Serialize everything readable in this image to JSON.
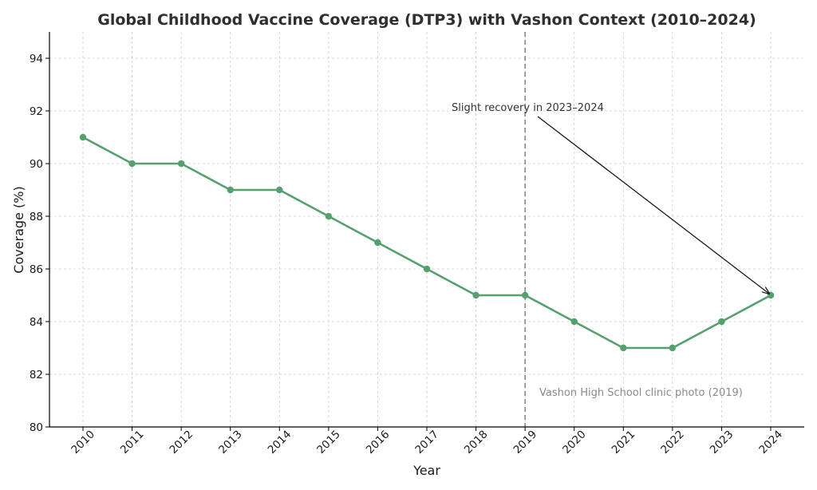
{
  "chart_data": {
    "type": "line",
    "title": "Global Childhood Vaccine Coverage (DTP3) with Vashon Context (2010–2024)",
    "xlabel": "Year",
    "ylabel": "Coverage (%)",
    "x": [
      "2010",
      "2011",
      "2012",
      "2013",
      "2014",
      "2015",
      "2016",
      "2017",
      "2018",
      "2019",
      "2020",
      "2021",
      "2022",
      "2023",
      "2024"
    ],
    "y_ticks": [
      "80",
      "82",
      "84",
      "86",
      "88",
      "90",
      "92",
      "94"
    ],
    "ylim": [
      80,
      95
    ],
    "grid": true,
    "series": [
      {
        "values": [
          91,
          90,
          90,
          89,
          89,
          88,
          87,
          86,
          85,
          85,
          84,
          83,
          83,
          84,
          85
        ],
        "color": "#55a06e"
      }
    ],
    "vline": {
      "x": "2019",
      "color": "#808080",
      "style": "dashed"
    },
    "annotations": [
      {
        "text": "Slight recovery in 2023–2024",
        "points_to": {
          "x": "2024",
          "y": 85
        }
      },
      {
        "text": "Vashon High School clinic photo (2019)"
      }
    ]
  }
}
